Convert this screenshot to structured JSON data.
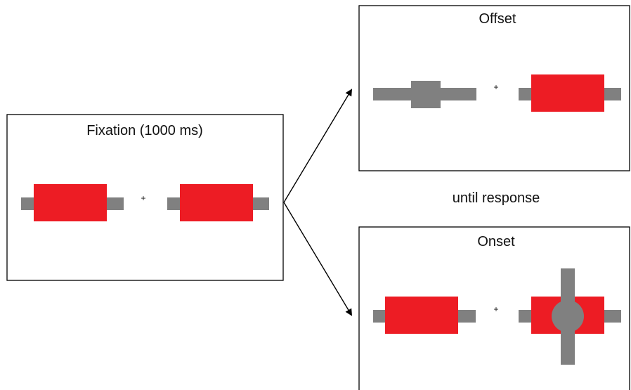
{
  "panels": {
    "fixation": {
      "title": "Fixation (1000 ms)"
    },
    "offset": {
      "title": "Offset"
    },
    "onset": {
      "title": "Onset"
    }
  },
  "timing_label": "until response",
  "fixation_mark": "+",
  "colors": {
    "object": "#ed1c24",
    "bar": "#808080",
    "border": "#000000"
  }
}
